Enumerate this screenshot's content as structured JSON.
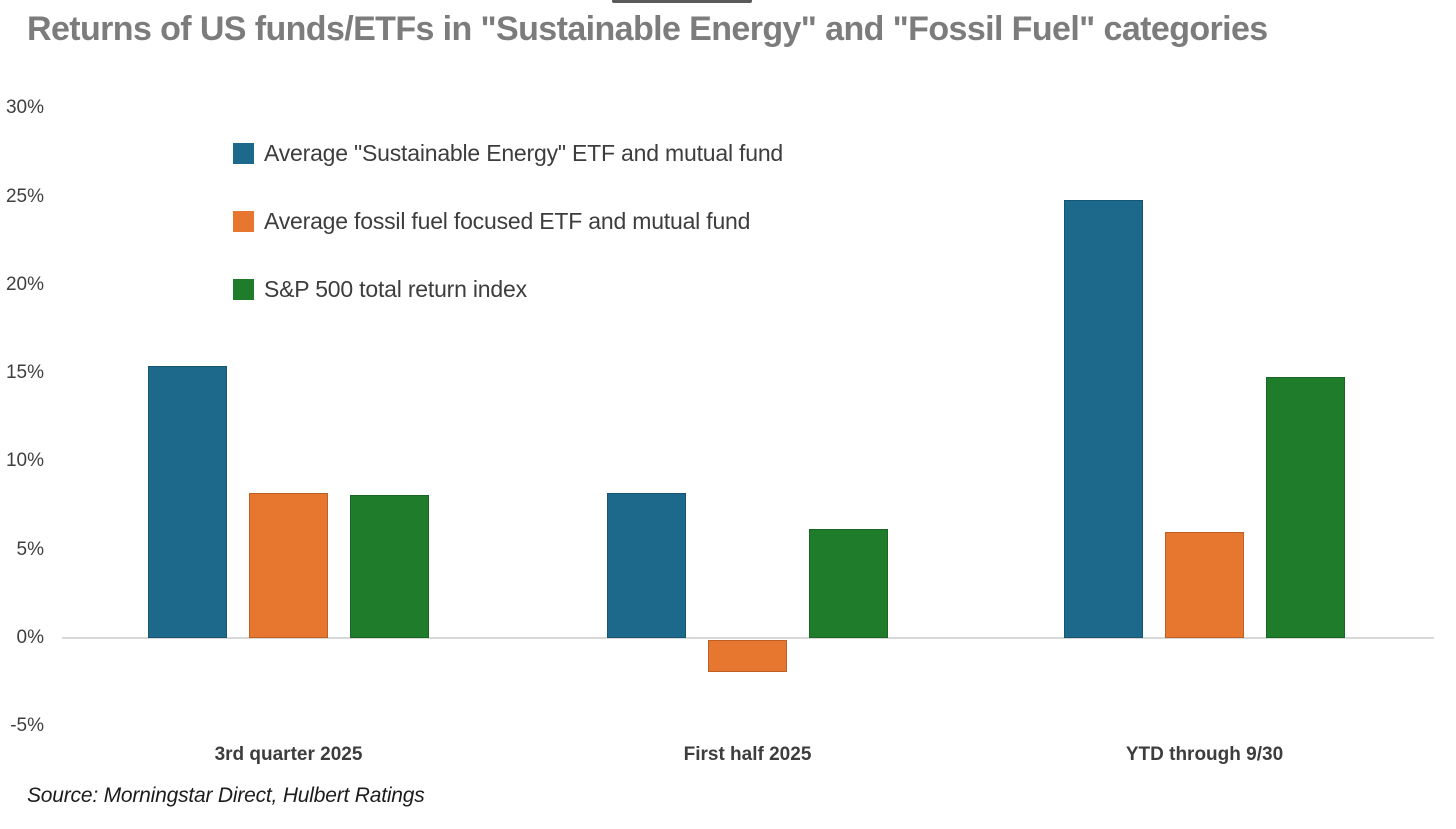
{
  "title": "Returns of US funds/ETFs in \"Sustainable Energy\" and \"Fossil Fuel\" categories",
  "source_note": "Source: Morningstar Direct, Hulbert Ratings",
  "colors": {
    "sustainable_blue": "#1d698c",
    "fossil_orange": "#e7762f",
    "sp500_green": "#1f7c2b",
    "title_gray": "#7c7c7c",
    "text_dark": "#3d3d3d",
    "axis_line": "#d8d8d8"
  },
  "chart_data": {
    "type": "bar",
    "title": "Returns of US funds/ETFs in \"Sustainable Energy\" and \"Fossil Fuel\" categories",
    "categories": [
      "3rd quarter 2025",
      "First half 2025",
      "YTD through 9/30"
    ],
    "series": [
      {
        "name": "Average \"Sustainable Energy\" ETF and mutual fund",
        "color": "#1d698c",
        "values": [
          15.4,
          8.2,
          24.8
        ]
      },
      {
        "name": "Average fossil fuel focused ETF and mutual fund",
        "color": "#e7762f",
        "values": [
          8.2,
          -1.8,
          6.0
        ]
      },
      {
        "name": "S&P 500 total return index",
        "color": "#1f7c2b",
        "values": [
          8.1,
          6.2,
          14.8
        ]
      }
    ],
    "xlabel": "",
    "ylabel": "",
    "ylim": [
      -5,
      30
    ],
    "yticks": [
      "30%",
      "25%",
      "20%",
      "15%",
      "10%",
      "5%",
      "0%",
      "-5%"
    ],
    "ytick_values": [
      30,
      25,
      20,
      15,
      10,
      5,
      0,
      -5
    ],
    "grid": "horizontal line at 0% only",
    "legend_position": "top-left inside plot area",
    "unit": "percent"
  }
}
